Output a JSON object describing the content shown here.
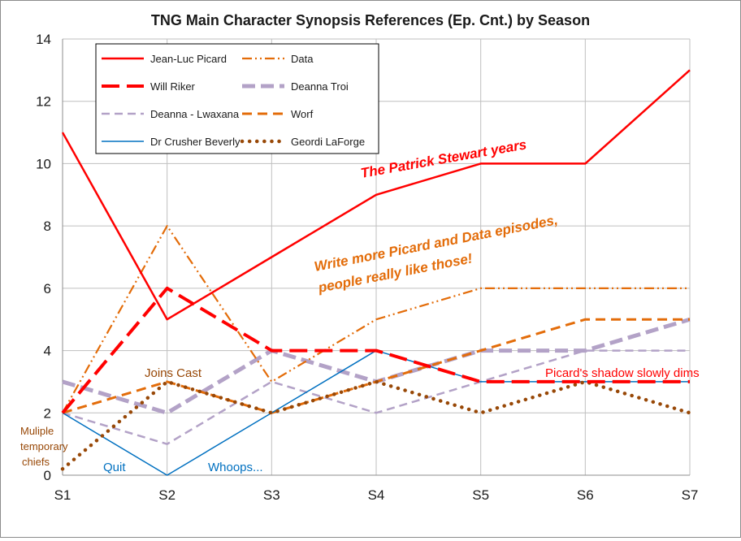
{
  "chart_data": {
    "type": "line",
    "title": "TNG Main Character Synopsis References (Ep. Cnt.) by Season",
    "xlabel": "",
    "ylabel": "",
    "categories": [
      "S1",
      "S2",
      "S3",
      "S4",
      "S5",
      "S6",
      "S7"
    ],
    "ylim": [
      0,
      14
    ],
    "y_ticks": [
      "0",
      "2",
      "4",
      "6",
      "8",
      "10",
      "12",
      "14"
    ],
    "grid": true,
    "legend_position": "top-left",
    "series": [
      {
        "name": "Jean-Luc  Picard",
        "values": [
          11,
          5,
          7,
          9,
          10,
          10,
          13
        ],
        "color": "#ff0000",
        "style": "solid"
      },
      {
        "name": "Data",
        "values": [
          2,
          8,
          3,
          5,
          6,
          6,
          6
        ],
        "color": "#e36c09",
        "style": "dashdotdot"
      },
      {
        "name": "Will  Riker",
        "values": [
          2,
          6,
          4,
          4,
          3,
          3,
          3
        ],
        "color": "#ff0000",
        "style": "longdash"
      },
      {
        "name": "Deanna  Troi",
        "values": [
          3,
          2,
          4,
          3,
          4,
          4,
          5
        ],
        "color": "#b3a2c7",
        "style": "dash-thick"
      },
      {
        "name": "Deanna - Lwaxana",
        "values": [
          2,
          1,
          3,
          2,
          3,
          4,
          4
        ],
        "color": "#b3a2c7",
        "style": "dash"
      },
      {
        "name": "Worf",
        "values": [
          2,
          3,
          2,
          3,
          4,
          5,
          5
        ],
        "color": "#e36c09",
        "style": "dash-orange"
      },
      {
        "name": "Dr Crusher  Beverly",
        "values": [
          2,
          0,
          2,
          4,
          3,
          3,
          3
        ],
        "color": "#0070c0",
        "style": "thin"
      },
      {
        "name": "Geordi  LaForge",
        "values": [
          0.2,
          3,
          2,
          3,
          2,
          3,
          2
        ],
        "color": "#984807",
        "style": "dots"
      }
    ],
    "annotations": [
      {
        "text": "The Patrick Stewart years",
        "color": "#ff0000"
      },
      {
        "text": "Write more Picard and Data episodes,",
        "color": "#e36c09"
      },
      {
        "text": "people really like those!",
        "color": "#e36c09"
      },
      {
        "text": "Joins Cast",
        "color": "#984807"
      },
      {
        "text": "Muliple",
        "color": "#984807"
      },
      {
        "text": "temporary",
        "color": "#984807"
      },
      {
        "text": "chiefs",
        "color": "#984807"
      },
      {
        "text": "Quit",
        "color": "#0070c0"
      },
      {
        "text": "Whoops...",
        "color": "#0070c0"
      },
      {
        "text": "Picard's shadow slowly dims",
        "color": "#ff0000"
      }
    ]
  }
}
